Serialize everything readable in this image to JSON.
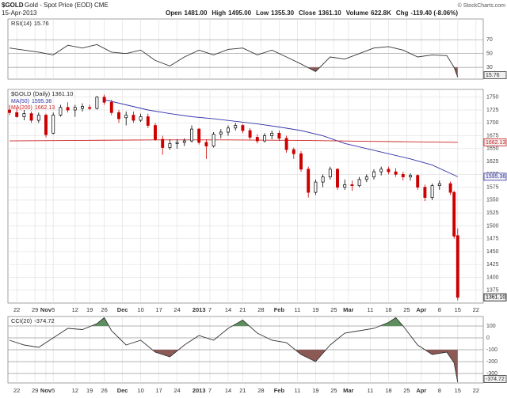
{
  "header": {
    "symbol": "$GOLD",
    "subtitle": "Gold - Spot Price (EOD) CME",
    "date": "15-Apr-2013",
    "stats": [
      {
        "label": "Open",
        "value": "1481.00"
      },
      {
        "label": "High",
        "value": "1495.00"
      },
      {
        "label": "Low",
        "value": "1355.30"
      },
      {
        "label": "Close",
        "value": "1361.10"
      },
      {
        "label": "Volume",
        "value": "622.8K"
      },
      {
        "label": "Chg",
        "value": "-119.40 (-8.06%)"
      }
    ],
    "copyright": "© StockCharts.com"
  },
  "chart_data": [
    {
      "type": "line",
      "name": "RSI(14)",
      "color": "#333333",
      "ylim": [
        13,
        100
      ],
      "yticks": [
        30,
        50,
        70
      ],
      "overbought": 70,
      "oversold": 30,
      "fill_above_color": "#5e8f5e",
      "fill_below_color": "#8c5a55",
      "x": [
        0,
        4,
        8,
        12,
        16,
        20,
        24,
        28,
        32,
        36,
        40,
        44,
        48,
        52,
        56,
        60,
        64,
        68,
        72,
        76,
        80,
        84,
        88,
        92,
        96,
        100,
        104,
        108,
        112,
        116,
        120,
        122,
        123
      ],
      "values": [
        58,
        55,
        52,
        48,
        62,
        58,
        63,
        52,
        50,
        55,
        40,
        32,
        45,
        55,
        48,
        56,
        58,
        48,
        55,
        45,
        35,
        24,
        45,
        42,
        50,
        58,
        60,
        55,
        45,
        48,
        47,
        30,
        15.76
      ]
    },
    {
      "type": "candlestick",
      "legend": "$GOLD (Daily) 1361.10",
      "up_color": "#000000",
      "down_color": "#cc0000",
      "xlim": [
        0,
        130
      ],
      "xticks": [
        {
          "value": 2,
          "label": "22"
        },
        {
          "value": 7,
          "label": "29"
        },
        {
          "value": 10,
          "label": "Nov"
        },
        {
          "value": 12,
          "label": "5"
        },
        {
          "value": 18,
          "label": "12"
        },
        {
          "value": 22,
          "label": "19"
        },
        {
          "value": 26,
          "label": "26"
        },
        {
          "value": 31,
          "label": "Dec"
        },
        {
          "value": 36,
          "label": "10"
        },
        {
          "value": 41,
          "label": "17"
        },
        {
          "value": 46,
          "label": "24"
        },
        {
          "value": 52,
          "label": "2013"
        },
        {
          "value": 55,
          "label": "7"
        },
        {
          "value": 60,
          "label": "14"
        },
        {
          "value": 64,
          "label": "21"
        },
        {
          "value": 69,
          "label": "28"
        },
        {
          "value": 74,
          "label": "Feb"
        },
        {
          "value": 79,
          "label": "11"
        },
        {
          "value": 84,
          "label": "19"
        },
        {
          "value": 89,
          "label": "25"
        },
        {
          "value": 93,
          "label": "Mar"
        },
        {
          "value": 99,
          "label": "11"
        },
        {
          "value": 104,
          "label": "18"
        },
        {
          "value": 109,
          "label": "25"
        },
        {
          "value": 113,
          "label": "Apr"
        },
        {
          "value": 118,
          "label": "8"
        },
        {
          "value": 123,
          "label": "15"
        },
        {
          "value": 128,
          "label": "22"
        }
      ],
      "bold_labels": [
        "Nov",
        "Dec",
        "2013",
        "Feb",
        "Mar",
        "Apr"
      ],
      "ylim": [
        1350,
        1765
      ],
      "yticks": [
        1375,
        1400,
        1425,
        1450,
        1475,
        1500,
        1525,
        1550,
        1575,
        1600,
        1625,
        1650,
        1675,
        1700,
        1725,
        1750
      ],
      "grid": true,
      "candles": [
        {
          "x": 0,
          "o": 1725,
          "h": 1735,
          "l": 1715,
          "c": 1720
        },
        {
          "x": 2,
          "o": 1720,
          "h": 1728,
          "l": 1710,
          "c": 1712
        },
        {
          "x": 4,
          "o": 1712,
          "h": 1725,
          "l": 1705,
          "c": 1718
        },
        {
          "x": 6,
          "o": 1718,
          "h": 1722,
          "l": 1700,
          "c": 1705
        },
        {
          "x": 8,
          "o": 1705,
          "h": 1720,
          "l": 1700,
          "c": 1715
        },
        {
          "x": 10,
          "o": 1715,
          "h": 1718,
          "l": 1672,
          "c": 1677
        },
        {
          "x": 12,
          "o": 1680,
          "h": 1720,
          "l": 1678,
          "c": 1715
        },
        {
          "x": 14,
          "o": 1715,
          "h": 1735,
          "l": 1712,
          "c": 1730
        },
        {
          "x": 16,
          "o": 1730,
          "h": 1740,
          "l": 1720,
          "c": 1725
        },
        {
          "x": 18,
          "o": 1725,
          "h": 1735,
          "l": 1712,
          "c": 1730
        },
        {
          "x": 20,
          "o": 1728,
          "h": 1738,
          "l": 1722,
          "c": 1732
        },
        {
          "x": 22,
          "o": 1730,
          "h": 1735,
          "l": 1725,
          "c": 1728
        },
        {
          "x": 24,
          "o": 1728,
          "h": 1752,
          "l": 1726,
          "c": 1750
        },
        {
          "x": 26,
          "o": 1750,
          "h": 1755,
          "l": 1735,
          "c": 1740
        },
        {
          "x": 28,
          "o": 1740,
          "h": 1745,
          "l": 1715,
          "c": 1720
        },
        {
          "x": 30,
          "o": 1720,
          "h": 1725,
          "l": 1700,
          "c": 1708
        },
        {
          "x": 32,
          "o": 1710,
          "h": 1722,
          "l": 1695,
          "c": 1715
        },
        {
          "x": 34,
          "o": 1715,
          "h": 1722,
          "l": 1700,
          "c": 1705
        },
        {
          "x": 36,
          "o": 1705,
          "h": 1718,
          "l": 1702,
          "c": 1712
        },
        {
          "x": 38,
          "o": 1712,
          "h": 1718,
          "l": 1690,
          "c": 1695
        },
        {
          "x": 40,
          "o": 1695,
          "h": 1700,
          "l": 1665,
          "c": 1668
        },
        {
          "x": 42,
          "o": 1668,
          "h": 1675,
          "l": 1638,
          "c": 1652
        },
        {
          "x": 44,
          "o": 1652,
          "h": 1668,
          "l": 1648,
          "c": 1660
        },
        {
          "x": 46,
          "o": 1660,
          "h": 1668,
          "l": 1650,
          "c": 1662
        },
        {
          "x": 48,
          "o": 1662,
          "h": 1670,
          "l": 1655,
          "c": 1665
        },
        {
          "x": 50,
          "o": 1665,
          "h": 1695,
          "l": 1662,
          "c": 1688
        },
        {
          "x": 52,
          "o": 1688,
          "h": 1690,
          "l": 1658,
          "c": 1662
        },
        {
          "x": 54,
          "o": 1662,
          "h": 1668,
          "l": 1630,
          "c": 1655
        },
        {
          "x": 56,
          "o": 1655,
          "h": 1682,
          "l": 1652,
          "c": 1678
        },
        {
          "x": 58,
          "o": 1678,
          "h": 1688,
          "l": 1670,
          "c": 1682
        },
        {
          "x": 60,
          "o": 1682,
          "h": 1695,
          "l": 1675,
          "c": 1690
        },
        {
          "x": 62,
          "o": 1690,
          "h": 1700,
          "l": 1685,
          "c": 1695
        },
        {
          "x": 64,
          "o": 1695,
          "h": 1698,
          "l": 1680,
          "c": 1685
        },
        {
          "x": 66,
          "o": 1685,
          "h": 1690,
          "l": 1668,
          "c": 1672
        },
        {
          "x": 68,
          "o": 1672,
          "h": 1678,
          "l": 1660,
          "c": 1665
        },
        {
          "x": 70,
          "o": 1665,
          "h": 1680,
          "l": 1662,
          "c": 1675
        },
        {
          "x": 72,
          "o": 1675,
          "h": 1685,
          "l": 1668,
          "c": 1680
        },
        {
          "x": 74,
          "o": 1680,
          "h": 1685,
          "l": 1665,
          "c": 1670
        },
        {
          "x": 76,
          "o": 1670,
          "h": 1675,
          "l": 1642,
          "c": 1648
        },
        {
          "x": 78,
          "o": 1648,
          "h": 1652,
          "l": 1630,
          "c": 1640
        },
        {
          "x": 80,
          "o": 1640,
          "h": 1645,
          "l": 1605,
          "c": 1610
        },
        {
          "x": 82,
          "o": 1610,
          "h": 1615,
          "l": 1555,
          "c": 1565
        },
        {
          "x": 84,
          "o": 1565,
          "h": 1590,
          "l": 1560,
          "c": 1585
        },
        {
          "x": 86,
          "o": 1585,
          "h": 1600,
          "l": 1575,
          "c": 1595
        },
        {
          "x": 88,
          "o": 1595,
          "h": 1615,
          "l": 1590,
          "c": 1610
        },
        {
          "x": 90,
          "o": 1610,
          "h": 1612,
          "l": 1570,
          "c": 1575
        },
        {
          "x": 92,
          "o": 1575,
          "h": 1590,
          "l": 1570,
          "c": 1580
        },
        {
          "x": 94,
          "o": 1580,
          "h": 1588,
          "l": 1568,
          "c": 1578
        },
        {
          "x": 96,
          "o": 1578,
          "h": 1595,
          "l": 1575,
          "c": 1590
        },
        {
          "x": 98,
          "o": 1590,
          "h": 1600,
          "l": 1585,
          "c": 1595
        },
        {
          "x": 100,
          "o": 1595,
          "h": 1610,
          "l": 1590,
          "c": 1605
        },
        {
          "x": 102,
          "o": 1605,
          "h": 1615,
          "l": 1598,
          "c": 1610
        },
        {
          "x": 104,
          "o": 1610,
          "h": 1615,
          "l": 1600,
          "c": 1605
        },
        {
          "x": 106,
          "o": 1605,
          "h": 1612,
          "l": 1595,
          "c": 1600
        },
        {
          "x": 108,
          "o": 1600,
          "h": 1605,
          "l": 1588,
          "c": 1595
        },
        {
          "x": 110,
          "o": 1595,
          "h": 1602,
          "l": 1588,
          "c": 1598
        },
        {
          "x": 112,
          "o": 1598,
          "h": 1600,
          "l": 1570,
          "c": 1575
        },
        {
          "x": 114,
          "o": 1575,
          "h": 1580,
          "l": 1548,
          "c": 1555
        },
        {
          "x": 116,
          "o": 1555,
          "h": 1582,
          "l": 1550,
          "c": 1578
        },
        {
          "x": 118,
          "o": 1578,
          "h": 1588,
          "l": 1570,
          "c": 1582
        },
        {
          "x": 121,
          "o": 1582,
          "h": 1586,
          "l": 1560,
          "c": 1565
        },
        {
          "x": 122,
          "o": 1565,
          "h": 1568,
          "l": 1475,
          "c": 1480
        },
        {
          "x": 123,
          "o": 1481,
          "h": 1495,
          "l": 1355.3,
          "c": 1361.1
        }
      ],
      "series": [
        {
          "name": "MA(50)",
          "color": "#3333aa",
          "x": [
            26,
            32,
            38,
            44,
            50,
            56,
            62,
            68,
            74,
            80,
            86,
            92,
            98,
            104,
            110,
            116,
            123
          ],
          "values": [
            1745,
            1735,
            1725,
            1718,
            1712,
            1708,
            1703,
            1698,
            1692,
            1685,
            1675,
            1660,
            1650,
            1640,
            1630,
            1618,
            1595.36
          ]
        },
        {
          "name": "MA(200)",
          "color": "#cc2222",
          "x": [
            0,
            20,
            40,
            60,
            80,
            100,
            123
          ],
          "values": [
            1665,
            1666,
            1667,
            1667,
            1666,
            1664,
            1662.13
          ]
        }
      ]
    },
    {
      "type": "line",
      "name": "CCI(20)",
      "color": "#333333",
      "ylim": [
        -380,
        180
      ],
      "yticks": [
        -300,
        -200,
        -100,
        0,
        100
      ],
      "overbought": 100,
      "oversold": -100,
      "fill_above_color": "#5e8f5e",
      "fill_below_color": "#8c5a55",
      "x": [
        0,
        4,
        8,
        12,
        16,
        20,
        24,
        26,
        28,
        32,
        36,
        40,
        44,
        48,
        52,
        56,
        60,
        64,
        68,
        72,
        76,
        80,
        84,
        88,
        92,
        96,
        100,
        104,
        106,
        108,
        112,
        116,
        120,
        122,
        123
      ],
      "values": [
        -20,
        -60,
        -80,
        0,
        80,
        70,
        120,
        170,
        60,
        -60,
        -20,
        -120,
        -160,
        -60,
        20,
        -20,
        80,
        150,
        40,
        -20,
        -40,
        -140,
        -200,
        -60,
        40,
        60,
        80,
        130,
        170,
        100,
        -60,
        -140,
        -120,
        -210,
        -374.72
      ]
    }
  ]
}
